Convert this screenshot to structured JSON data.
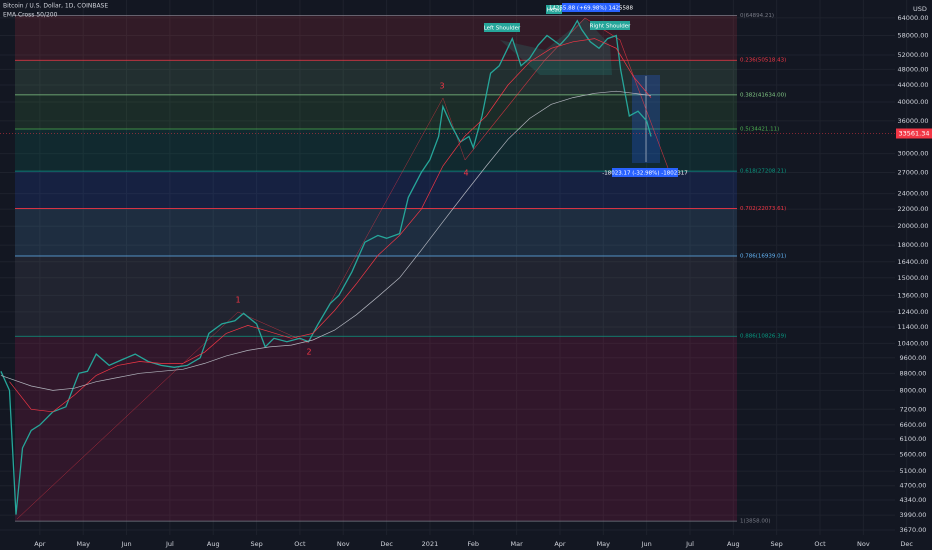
{
  "chart_data": {
    "type": "line",
    "log_scale": true,
    "grid": true,
    "title": "Bitcoin / U.S. Dollar, 1D, COINBASE",
    "subtitle": "EMA Cross 50/200",
    "currency": "USD",
    "xlim": [
      2.08,
      22.73
    ],
    "xticks": [
      {
        "value": 3,
        "label": "Apr"
      },
      {
        "value": 4,
        "label": "May"
      },
      {
        "value": 5,
        "label": "Jun"
      },
      {
        "value": 6,
        "label": "Jul"
      },
      {
        "value": 7,
        "label": "Aug"
      },
      {
        "value": 8,
        "label": "Sep"
      },
      {
        "value": 9,
        "label": "Oct"
      },
      {
        "value": 10,
        "label": "Nov"
      },
      {
        "value": 11,
        "label": "Dec"
      },
      {
        "value": 12,
        "label": "2021"
      },
      {
        "value": 13,
        "label": "Feb"
      },
      {
        "value": 14,
        "label": "Mar"
      },
      {
        "value": 15,
        "label": "Apr"
      },
      {
        "value": 16,
        "label": "May"
      },
      {
        "value": 17,
        "label": "Jun"
      },
      {
        "value": 18,
        "label": "Jul"
      },
      {
        "value": 19,
        "label": "Aug"
      },
      {
        "value": 20,
        "label": "Sep"
      },
      {
        "value": 21,
        "label": "Oct"
      },
      {
        "value": 22,
        "label": "Nov"
      },
      {
        "value": 23,
        "label": "Dec"
      }
    ],
    "ylim": [
      3570,
      70700
    ],
    "yticks": [
      {
        "value": 64000,
        "label": "64000.00"
      },
      {
        "value": 58000,
        "label": "58000.00"
      },
      {
        "value": 52000,
        "label": "52000.00"
      },
      {
        "value": 48000,
        "label": "48000.00"
      },
      {
        "value": 44000,
        "label": "44000.00"
      },
      {
        "value": 40000,
        "label": "40000.00"
      },
      {
        "value": 36000,
        "label": "36000.00"
      },
      {
        "value": 30000,
        "label": "30000.00"
      },
      {
        "value": 27000,
        "label": "27000.00"
      },
      {
        "value": 24000,
        "label": "24000.00"
      },
      {
        "value": 22000,
        "label": "22000.00"
      },
      {
        "value": 20000,
        "label": "20000.00"
      },
      {
        "value": 18000,
        "label": "18000.00"
      },
      {
        "value": 16400,
        "label": "16400.00"
      },
      {
        "value": 15000,
        "label": "15000.00"
      },
      {
        "value": 13600,
        "label": "13600.00"
      },
      {
        "value": 12400,
        "label": "12400.00"
      },
      {
        "value": 11400,
        "label": "11400.00"
      },
      {
        "value": 10400,
        "label": "10400.00"
      },
      {
        "value": 9600,
        "label": "9600.00"
      },
      {
        "value": 8800,
        "label": "8800.00"
      },
      {
        "value": 8000,
        "label": "8000.00"
      },
      {
        "value": 7200,
        "label": "7200.00"
      },
      {
        "value": 6600,
        "label": "6600.00"
      },
      {
        "value": 6100,
        "label": "6100.00"
      },
      {
        "value": 5600,
        "label": "5600.00"
      },
      {
        "value": 5100,
        "label": "5100.00"
      },
      {
        "value": 4700,
        "label": "4700.00"
      },
      {
        "value": 4340,
        "label": "4340.00"
      },
      {
        "value": 3990,
        "label": "3990.00"
      },
      {
        "value": 3670,
        "label": "3670.00"
      }
    ],
    "last_price": {
      "value": 33561.34,
      "label": "33561.34",
      "color": "#f23645"
    },
    "fib_levels": [
      {
        "value": 64894.21,
        "label": "0(64894.21)",
        "color": "#787b86",
        "band_color": "#f23645"
      },
      {
        "value": 50518.43,
        "label": "0.236(50518.43)",
        "color": "#f23645",
        "band_color": "#81c784"
      },
      {
        "value": 41634.0,
        "label": "0.382(41634.00)",
        "color": "#81c784",
        "band_color": "#4caf50"
      },
      {
        "value": 34421.11,
        "label": "0.5(34421.11)",
        "color": "#4caf50",
        "band_color": "#089981"
      },
      {
        "value": 27208.21,
        "label": "0.618(27208.21)",
        "color": "#089981",
        "band_color": "#2962ff"
      },
      {
        "value": 22073.61,
        "label": "0.702(22073.61)",
        "color": "#f23645",
        "band_color": "#64b5f6"
      },
      {
        "value": 16939.01,
        "label": "0.786(16939.01)",
        "color": "#64b5f6",
        "band_color": "#787b86"
      },
      {
        "value": 10826.39,
        "label": "0.886(10826.39)",
        "color": "#089981",
        "band_color": "#e91e63"
      },
      {
        "value": 3858.0,
        "label": "1(3858.00)",
        "color": "#787b86"
      }
    ],
    "series": [
      {
        "color": "#26a69a",
        "x": [
          2.1,
          2.3,
          2.4,
          2.45,
          2.6,
          2.8,
          3.0,
          3.3,
          3.6,
          3.9,
          4.1,
          4.3,
          4.6,
          4.9,
          5.2,
          5.5,
          5.8,
          6.1,
          6.4,
          6.7,
          6.9,
          7.2,
          7.5,
          7.7,
          8.0,
          8.2,
          8.4,
          8.7,
          9.0,
          9.2,
          9.4,
          9.7,
          9.9,
          10.2,
          10.5,
          10.8,
          11.0,
          11.3,
          11.5,
          11.8,
          12.0,
          12.2,
          12.3,
          12.5,
          12.7,
          12.9,
          13.0,
          13.2,
          13.4,
          13.6,
          13.9,
          14.1,
          14.3,
          14.5,
          14.7,
          15.0,
          15.2,
          15.4,
          15.5,
          15.7,
          15.9,
          16.1,
          16.3,
          16.4,
          16.6,
          16.8,
          17.0,
          17.1
        ],
        "values": [
          8900,
          8000,
          5000,
          4000,
          5800,
          6400,
          6600,
          7100,
          7300,
          8800,
          8900,
          9800,
          9200,
          9500,
          9800,
          9400,
          9200,
          9100,
          9200,
          9600,
          11000,
          11600,
          11800,
          12300,
          11600,
          10200,
          10700,
          10500,
          10700,
          10500,
          11500,
          13000,
          13600,
          15500,
          18300,
          19000,
          18700,
          19200,
          23500,
          27000,
          29000,
          33000,
          39000,
          35000,
          32000,
          33000,
          31000,
          37000,
          47000,
          49000,
          57000,
          49000,
          51000,
          55000,
          58000,
          55000,
          58000,
          63000,
          60000,
          56000,
          54000,
          57000,
          58000,
          48000,
          37000,
          38000,
          36000,
          33000
        ]
      },
      {
        "color": "#f23645",
        "x": [
          2.3,
          2.8,
          3.3,
          3.8,
          4.3,
          4.8,
          5.3,
          5.8,
          6.3,
          6.8,
          7.3,
          7.8,
          8.3,
          8.8,
          9.3,
          9.8,
          10.3,
          10.8,
          11.3,
          11.8,
          12.3,
          12.8,
          13.3,
          13.8,
          14.3,
          14.8,
          15.3,
          15.8,
          16.3,
          16.7,
          17.1
        ],
        "values": [
          8400,
          7200,
          7100,
          7800,
          8700,
          9200,
          9400,
          9300,
          9300,
          9900,
          11000,
          11500,
          11100,
          10700,
          11000,
          12500,
          14500,
          17000,
          19000,
          22000,
          28000,
          33000,
          37000,
          44000,
          50000,
          54000,
          56000,
          57000,
          54000,
          46000,
          41000
        ]
      },
      {
        "color": "#b2b5be",
        "x": [
          2.1,
          2.8,
          3.3,
          3.8,
          4.3,
          4.8,
          5.3,
          5.8,
          6.3,
          6.8,
          7.3,
          7.8,
          8.3,
          8.8,
          9.3,
          9.8,
          10.3,
          10.8,
          11.3,
          11.8,
          12.3,
          12.8,
          13.3,
          13.8,
          14.3,
          14.8,
          15.3,
          15.8,
          16.3,
          16.7,
          17.1
        ],
        "values": [
          8700,
          8200,
          8000,
          8100,
          8400,
          8600,
          8800,
          8900,
          9000,
          9300,
          9700,
          10000,
          10200,
          10300,
          10600,
          11200,
          12200,
          13500,
          15000,
          17500,
          20500,
          24000,
          28000,
          32500,
          36500,
          39500,
          41000,
          42000,
          42500,
          42000,
          41500
        ]
      }
    ],
    "annotations": {
      "left_shoulder": "Left Shoulder",
      "head": "Head",
      "right_shoulder": "Right Shoulder",
      "head_measure": "14255.88 (+69.98%) 1425588",
      "drop_measure": "-18023.17 (-32.98%) -1802317",
      "wave_1": "1",
      "wave_2": "2",
      "wave_3": "3",
      "wave_4": "4"
    }
  }
}
